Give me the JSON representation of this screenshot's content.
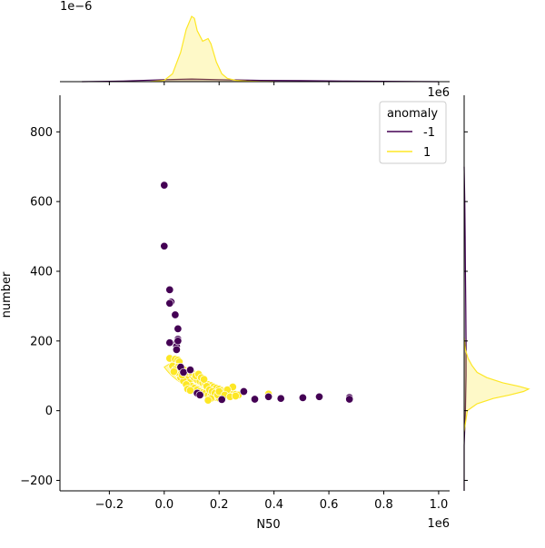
{
  "chart_data": {
    "type": "scatter",
    "xlabel": "N50",
    "ylabel": "number",
    "x_offset_text": "1e6",
    "y_offset_text": "1e6",
    "marginal_offset_text": "1e−6",
    "xlim": [
      -0.38,
      1.04
    ],
    "ylim": [
      -230,
      905
    ],
    "xticks": [
      -0.2,
      0.0,
      0.2,
      0.4,
      0.6,
      0.8,
      1.0
    ],
    "xtick_labels": [
      "−0.2",
      "0.0",
      "0.2",
      "0.4",
      "0.6",
      "0.8",
      "1.0"
    ],
    "yticks": [
      -200,
      0,
      200,
      400,
      600,
      800
    ],
    "ytick_labels": [
      "−200",
      "0",
      "200",
      "400",
      "600",
      "800"
    ],
    "grid": false,
    "legend": {
      "title": "anomaly",
      "placement": "top-right",
      "entries": [
        {
          "label": "-1",
          "color": "#440154"
        },
        {
          "label": "1",
          "color": "#fde725"
        }
      ]
    },
    "series": [
      {
        "name": "-1",
        "color": "#440154",
        "points": [
          [
            0.0,
            647
          ],
          [
            0.0,
            472
          ],
          [
            0.02,
            347
          ],
          [
            0.025,
            312
          ],
          [
            0.02,
            308
          ],
          [
            0.04,
            275
          ],
          [
            0.05,
            235
          ],
          [
            0.05,
            205
          ],
          [
            0.045,
            195
          ],
          [
            0.02,
            195
          ],
          [
            0.045,
            185
          ],
          [
            0.045,
            175
          ],
          [
            0.05,
            200
          ],
          [
            0.06,
            125
          ],
          [
            0.07,
            110
          ],
          [
            0.095,
            117
          ],
          [
            0.12,
            50
          ],
          [
            0.13,
            45
          ],
          [
            0.21,
            32
          ],
          [
            0.29,
            55
          ],
          [
            0.33,
            33
          ],
          [
            0.38,
            40
          ],
          [
            0.425,
            35
          ],
          [
            0.505,
            37
          ],
          [
            0.565,
            40
          ],
          [
            0.675,
            38
          ],
          [
            0.675,
            33
          ]
        ]
      },
      {
        "name": "1",
        "color": "#fde725",
        "points": [
          [
            0.02,
            150
          ],
          [
            0.04,
            148
          ],
          [
            0.05,
            145
          ],
          [
            0.055,
            140
          ],
          [
            0.03,
            128
          ],
          [
            0.05,
            125
          ],
          [
            0.06,
            120
          ],
          [
            0.07,
            118
          ],
          [
            0.075,
            110
          ],
          [
            0.085,
            105
          ],
          [
            0.09,
            100
          ],
          [
            0.1,
            95
          ],
          [
            0.11,
            92
          ],
          [
            0.12,
            88
          ],
          [
            0.13,
            85
          ],
          [
            0.14,
            80
          ],
          [
            0.15,
            78
          ],
          [
            0.16,
            75
          ],
          [
            0.17,
            72
          ],
          [
            0.18,
            68
          ],
          [
            0.19,
            65
          ],
          [
            0.2,
            62
          ],
          [
            0.21,
            58
          ],
          [
            0.22,
            55
          ],
          [
            0.23,
            52
          ],
          [
            0.24,
            50
          ],
          [
            0.25,
            48
          ],
          [
            0.26,
            47
          ],
          [
            0.27,
            45
          ],
          [
            0.08,
            90
          ],
          [
            0.09,
            80
          ],
          [
            0.1,
            70
          ],
          [
            0.11,
            65
          ],
          [
            0.12,
            60
          ],
          [
            0.13,
            55
          ],
          [
            0.14,
            52
          ],
          [
            0.15,
            50
          ],
          [
            0.16,
            45
          ],
          [
            0.17,
            42
          ],
          [
            0.18,
            40
          ],
          [
            0.19,
            38
          ],
          [
            0.2,
            36
          ],
          [
            0.06,
            95
          ],
          [
            0.07,
            85
          ],
          [
            0.08,
            75
          ],
          [
            0.1,
            110
          ],
          [
            0.115,
            100
          ],
          [
            0.125,
            105
          ],
          [
            0.135,
            95
          ],
          [
            0.145,
            90
          ],
          [
            0.155,
            70
          ],
          [
            0.165,
            60
          ],
          [
            0.175,
            55
          ],
          [
            0.185,
            50
          ],
          [
            0.195,
            45
          ],
          [
            0.25,
            68
          ],
          [
            0.23,
            60
          ],
          [
            0.2,
            55
          ],
          [
            0.17,
            35
          ],
          [
            0.16,
            30
          ],
          [
            0.22,
            45
          ],
          [
            0.24,
            40
          ],
          [
            0.26,
            42
          ],
          [
            0.38,
            48
          ],
          [
            0.05,
            110
          ],
          [
            0.04,
            118
          ],
          [
            0.035,
            112
          ],
          [
            0.065,
            102
          ],
          [
            0.085,
            62
          ],
          [
            0.095,
            58
          ]
        ]
      }
    ],
    "marginal_top": {
      "type": "area",
      "series": [
        {
          "name": "-1",
          "color": "#440154",
          "x": [
            -0.3,
            -0.15,
            0.0,
            0.1,
            0.2,
            0.35,
            0.5,
            0.65,
            0.8,
            1.0
          ],
          "y": [
            0.0,
            0.01,
            0.03,
            0.04,
            0.03,
            0.02,
            0.015,
            0.01,
            0.005,
            0.0
          ]
        },
        {
          "name": "1",
          "color": "#fde725",
          "x": [
            -0.05,
            0.0,
            0.03,
            0.06,
            0.08,
            0.1,
            0.11,
            0.12,
            0.14,
            0.16,
            0.17,
            0.19,
            0.21,
            0.23,
            0.26,
            0.3,
            0.35,
            0.4
          ],
          "y": [
            0.0,
            0.02,
            0.12,
            0.45,
            0.8,
            1.0,
            0.97,
            0.78,
            0.62,
            0.66,
            0.58,
            0.3,
            0.12,
            0.05,
            0.02,
            0.008,
            0.003,
            0.0
          ]
        }
      ]
    },
    "marginal_right": {
      "type": "area",
      "series": [
        {
          "name": "-1",
          "color": "#440154",
          "y": [
            -230,
            -100,
            0,
            100,
            200,
            300,
            400,
            500,
            600,
            700
          ],
          "x": [
            0.0,
            0.0,
            0.02,
            0.03,
            0.03,
            0.025,
            0.02,
            0.015,
            0.01,
            0.0
          ]
        },
        {
          "name": "1",
          "color": "#fde725",
          "y": [
            -60,
            0,
            20,
            35,
            45,
            55,
            62,
            70,
            80,
            95,
            110,
            130,
            150,
            175,
            210
          ],
          "x": [
            0.0,
            0.05,
            0.2,
            0.45,
            0.7,
            0.92,
            1.0,
            0.85,
            0.6,
            0.35,
            0.2,
            0.12,
            0.06,
            0.02,
            0.0
          ]
        }
      ]
    }
  }
}
